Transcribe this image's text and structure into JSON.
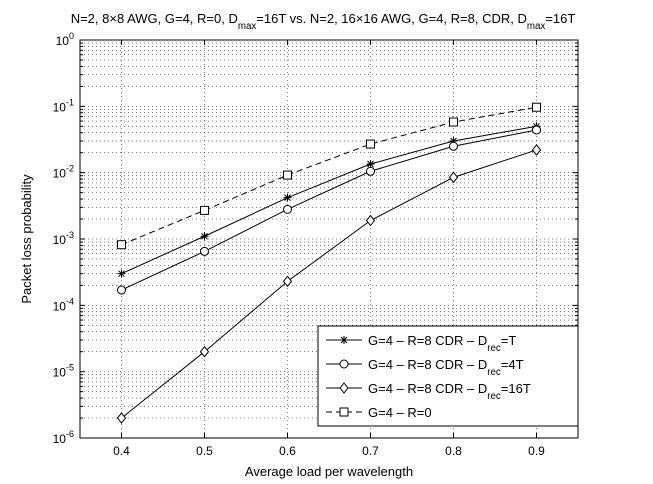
{
  "chart_data": {
    "type": "line",
    "title": {
      "parts": [
        {
          "text": "N=2, 8×8 AWG, G=4, R=0, D"
        },
        {
          "text": "max",
          "sub": true
        },
        {
          "text": "=16T vs. N=2, 16×16 AWG, G=4, R=8, CDR, D"
        },
        {
          "text": "max",
          "sub": true
        },
        {
          "text": "=16T"
        }
      ]
    },
    "xlabel": "Average load per wavelength",
    "ylabel": "Packet loss probability",
    "xlim": [
      0.35,
      0.95
    ],
    "ylim": [
      1e-06,
      1
    ],
    "yscale": "log",
    "grid": true,
    "legend_position": "bottom-right",
    "x_ticks": [
      {
        "value": 0.4,
        "label": "0.4"
      },
      {
        "value": 0.5,
        "label": "0.5"
      },
      {
        "value": 0.6,
        "label": "0.6"
      },
      {
        "value": 0.7,
        "label": "0.7"
      },
      {
        "value": 0.8,
        "label": "0.8"
      },
      {
        "value": 0.9,
        "label": "0.9"
      }
    ],
    "y_ticks": [
      {
        "value": 1e-06,
        "base": "10",
        "exp": "-6"
      },
      {
        "value": 1e-05,
        "base": "10",
        "exp": "-5"
      },
      {
        "value": 0.0001,
        "base": "10",
        "exp": "-4"
      },
      {
        "value": 0.001,
        "base": "10",
        "exp": "-3"
      },
      {
        "value": 0.01,
        "base": "10",
        "exp": "-2"
      },
      {
        "value": 0.1,
        "base": "10",
        "exp": "-1"
      },
      {
        "value": 1,
        "base": "10",
        "exp": "0"
      }
    ],
    "x": [
      0.4,
      0.5,
      0.6,
      0.7,
      0.8,
      0.9
    ],
    "series": [
      {
        "key": "drec-t",
        "marker": "star",
        "dash": "solid",
        "color": "#000000",
        "legend": [
          {
            "text": "G=4 – R=8 CDR – D"
          },
          {
            "text": "rec",
            "sub": true
          },
          {
            "text": "=T"
          }
        ],
        "values": [
          0.0003,
          0.0011,
          0.0042,
          0.0135,
          0.03,
          0.05
        ]
      },
      {
        "key": "drec-4t",
        "marker": "circle",
        "dash": "solid",
        "color": "#000000",
        "legend": [
          {
            "text": "G=4 – R=8 CDR – D"
          },
          {
            "text": "rec",
            "sub": true
          },
          {
            "text": "=4T"
          }
        ],
        "values": [
          0.00017,
          0.00065,
          0.0028,
          0.0105,
          0.025,
          0.044
        ]
      },
      {
        "key": "drec-16t",
        "marker": "diamond",
        "dash": "solid",
        "color": "#000000",
        "legend": [
          {
            "text": "G=4 – R=8 CDR – D"
          },
          {
            "text": "rec",
            "sub": true
          },
          {
            "text": "=16T"
          }
        ],
        "values": [
          2e-06,
          2e-05,
          0.00023,
          0.0019,
          0.0085,
          0.022
        ]
      },
      {
        "key": "r0",
        "marker": "square",
        "dash": "dashed",
        "color": "#000000",
        "legend": [
          {
            "text": "G=4 – R=0"
          }
        ],
        "values": [
          0.00082,
          0.0027,
          0.0092,
          0.027,
          0.058,
          0.097
        ]
      }
    ]
  }
}
